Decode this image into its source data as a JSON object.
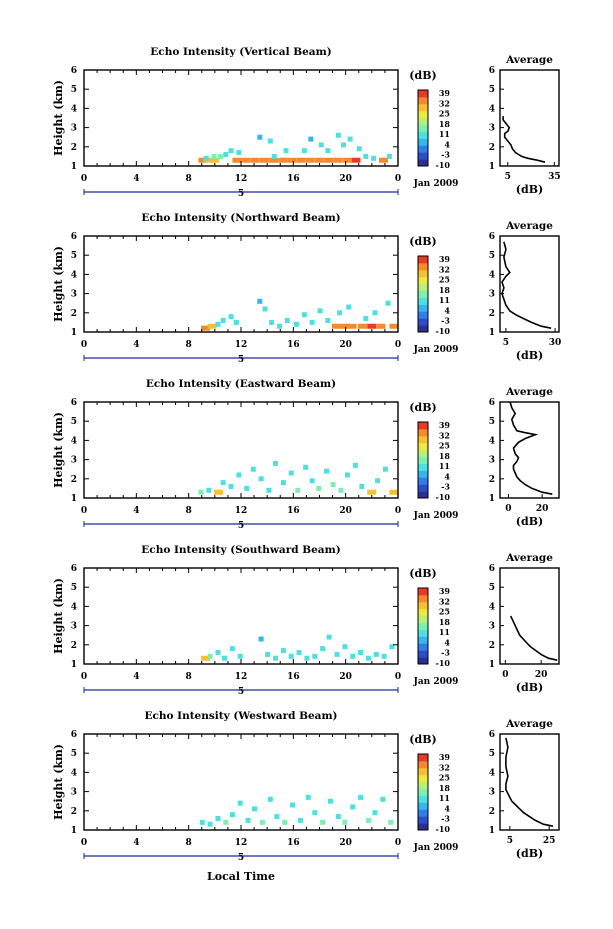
{
  "figure": {
    "xlabel": "Local Time",
    "date_label": "Jan 2009",
    "day_label": "5",
    "colorbar_unit": "(dB)",
    "colorbar_ticks": [
      "39",
      "32",
      "25",
      "18",
      "11",
      "4",
      "-3",
      "-10"
    ],
    "colorbar_colors": [
      "#2b2f8f",
      "#2c4fc9",
      "#2f7fe6",
      "#36b4ee",
      "#4ee0e0",
      "#7cf0b0",
      "#b6f07a",
      "#eaea40",
      "#f7c030",
      "#f48a2a",
      "#e83a26"
    ]
  },
  "chart_data": [
    {
      "type": "heatmap",
      "title": "Echo Intensity (Vertical Beam)",
      "xlabel": "Local Time",
      "ylabel": "Height (km)",
      "xlim": [
        0,
        24
      ],
      "ylim": [
        1,
        6
      ],
      "xticks": [
        "0",
        "4",
        "8",
        "12",
        "16",
        "20",
        "0"
      ],
      "yticks": [
        "1",
        "2",
        "3",
        "4",
        "5",
        "6"
      ],
      "colorbar": {
        "label": "(dB)",
        "range": [
          -10,
          39
        ]
      },
      "cells": [
        [
          8.9,
          1.3,
          31
        ],
        [
          9.3,
          1.3,
          28
        ],
        [
          9.3,
          1.4,
          12
        ],
        [
          9.8,
          1.3,
          30
        ],
        [
          9.9,
          1.5,
          14
        ],
        [
          10.4,
          1.5,
          13
        ],
        [
          10.8,
          1.6,
          9
        ],
        [
          11.2,
          1.8,
          10
        ],
        [
          11.8,
          1.7,
          8
        ],
        [
          11.5,
          1.3,
          32
        ],
        [
          12.2,
          1.3,
          33
        ],
        [
          12.9,
          1.3,
          34
        ],
        [
          13.6,
          1.3,
          34
        ],
        [
          14.3,
          1.3,
          33
        ],
        [
          13.4,
          2.5,
          7
        ],
        [
          14.2,
          2.3,
          10
        ],
        [
          14.5,
          1.5,
          9
        ],
        [
          15.0,
          1.3,
          33
        ],
        [
          15.7,
          1.3,
          32
        ],
        [
          15.4,
          1.8,
          8
        ],
        [
          16.4,
          1.3,
          33
        ],
        [
          17.1,
          1.3,
          34
        ],
        [
          17.8,
          1.3,
          34
        ],
        [
          18.5,
          1.3,
          31
        ],
        [
          16.8,
          1.8,
          11
        ],
        [
          17.3,
          2.4,
          7
        ],
        [
          18.1,
          2.1,
          9
        ],
        [
          18.6,
          1.8,
          10
        ],
        [
          19.2,
          1.3,
          33
        ],
        [
          19.9,
          1.3,
          32
        ],
        [
          19.4,
          2.6,
          8
        ],
        [
          19.8,
          2.1,
          12
        ],
        [
          20.3,
          2.4,
          9
        ],
        [
          20.6,
          1.3,
          37
        ],
        [
          21.0,
          1.9,
          8
        ],
        [
          21.5,
          1.5,
          10
        ],
        [
          22.1,
          1.4,
          9
        ],
        [
          22.7,
          1.3,
          33
        ],
        [
          23.3,
          1.5,
          10
        ]
      ],
      "profile": {
        "title": "Average",
        "xlabel": "(dB)",
        "xlim": [
          0,
          38
        ],
        "xticks": [
          "5",
          "35"
        ],
        "xtick_values": [
          5,
          35
        ],
        "ylim": [
          1,
          6
        ],
        "yticks": [
          "1",
          "2",
          "3",
          "4",
          "5",
          "6"
        ],
        "x": [
          29,
          24,
          18,
          14,
          12,
          10,
          8,
          7,
          5,
          3,
          3,
          5,
          6,
          4,
          2,
          2
        ],
        "y": [
          1.2,
          1.3,
          1.4,
          1.5,
          1.6,
          1.7,
          1.9,
          2.1,
          2.3,
          2.5,
          2.7,
          2.8,
          3.0,
          3.2,
          3.4,
          3.6
        ]
      }
    },
    {
      "type": "heatmap",
      "title": "Echo Intensity (Northward Beam)",
      "xlabel": "Local Time",
      "ylabel": "Height (km)",
      "xlim": [
        0,
        24
      ],
      "ylim": [
        1,
        6
      ],
      "xticks": [
        "0",
        "4",
        "8",
        "12",
        "16",
        "20",
        "0"
      ],
      "yticks": [
        "1",
        "2",
        "3",
        "4",
        "5",
        "6"
      ],
      "colorbar": {
        "label": "(dB)",
        "range": [
          -10,
          39
        ]
      },
      "cells": [
        [
          9.1,
          1.2,
          33
        ],
        [
          9.6,
          1.3,
          30
        ],
        [
          10.2,
          1.4,
          12
        ],
        [
          10.6,
          1.6,
          10
        ],
        [
          11.2,
          1.8,
          9
        ],
        [
          11.6,
          1.5,
          12
        ],
        [
          13.4,
          2.6,
          7
        ],
        [
          13.8,
          2.2,
          9
        ],
        [
          14.3,
          1.5,
          10
        ],
        [
          14.9,
          1.3,
          12
        ],
        [
          15.5,
          1.6,
          9
        ],
        [
          16.2,
          1.4,
          10
        ],
        [
          16.8,
          1.9,
          8
        ],
        [
          17.4,
          1.5,
          11
        ],
        [
          18.0,
          2.1,
          9
        ],
        [
          18.6,
          1.6,
          12
        ],
        [
          19.1,
          1.3,
          31
        ],
        [
          19.7,
          1.3,
          33
        ],
        [
          20.3,
          1.3,
          32
        ],
        [
          19.5,
          2.0,
          10
        ],
        [
          20.2,
          2.3,
          8
        ],
        [
          21.1,
          1.3,
          34
        ],
        [
          21.8,
          1.3,
          35
        ],
        [
          22.5,
          1.3,
          33
        ],
        [
          21.5,
          1.7,
          10
        ],
        [
          22.2,
          2.0,
          8
        ],
        [
          23.2,
          2.5,
          9
        ],
        [
          23.5,
          1.3,
          31
        ]
      ],
      "profile": {
        "title": "Average",
        "xlabel": "(dB)",
        "xlim": [
          2,
          32
        ],
        "xticks": [
          "5",
          "30"
        ],
        "xtick_values": [
          5,
          30
        ],
        "ylim": [
          1,
          6
        ],
        "yticks": [
          "1",
          "2",
          "3",
          "4",
          "5",
          "6"
        ],
        "x": [
          28,
          23,
          18,
          14,
          10,
          7,
          5,
          4,
          3,
          4,
          3,
          5,
          7,
          5,
          4,
          5,
          4
        ],
        "y": [
          1.2,
          1.3,
          1.5,
          1.7,
          1.9,
          2.1,
          2.4,
          2.7,
          3.0,
          3.3,
          3.6,
          3.9,
          4.1,
          4.4,
          4.9,
          5.3,
          5.7
        ]
      }
    },
    {
      "type": "heatmap",
      "title": "Echo Intensity (Eastward Beam)",
      "xlabel": "Local Time",
      "ylabel": "Height (km)",
      "xlim": [
        0,
        24
      ],
      "ylim": [
        1,
        6
      ],
      "xticks": [
        "0",
        "4",
        "8",
        "12",
        "16",
        "20",
        "0"
      ],
      "yticks": [
        "1",
        "2",
        "3",
        "4",
        "5",
        "6"
      ],
      "colorbar": {
        "label": "(dB)",
        "range": [
          -10,
          39
        ]
      },
      "cells": [
        [
          8.9,
          1.3,
          13
        ],
        [
          9.5,
          1.4,
          11
        ],
        [
          10.1,
          1.3,
          28
        ],
        [
          10.6,
          1.8,
          10
        ],
        [
          11.2,
          1.6,
          12
        ],
        [
          11.8,
          2.2,
          9
        ],
        [
          12.4,
          1.5,
          11
        ],
        [
          12.9,
          2.5,
          9
        ],
        [
          13.5,
          2.0,
          10
        ],
        [
          14.1,
          1.4,
          12
        ],
        [
          14.6,
          2.8,
          8
        ],
        [
          15.2,
          1.8,
          11
        ],
        [
          15.8,
          2.3,
          9
        ],
        [
          16.3,
          1.4,
          13
        ],
        [
          16.9,
          2.6,
          8
        ],
        [
          17.4,
          1.9,
          12
        ],
        [
          17.9,
          1.5,
          14
        ],
        [
          18.5,
          2.4,
          9
        ],
        [
          19.0,
          1.7,
          13
        ],
        [
          19.6,
          1.4,
          15
        ],
        [
          20.1,
          2.2,
          10
        ],
        [
          20.7,
          2.7,
          8
        ],
        [
          21.2,
          1.6,
          12
        ],
        [
          21.8,
          1.3,
          29
        ],
        [
          22.4,
          1.9,
          10
        ],
        [
          23.0,
          2.5,
          8
        ],
        [
          23.5,
          1.3,
          30
        ]
      ],
      "profile": {
        "title": "Average",
        "xlabel": "(dB)",
        "xlim": [
          -5,
          30
        ],
        "xticks": [
          "0",
          "20"
        ],
        "xtick_values": [
          0,
          20
        ],
        "ylim": [
          1,
          6
        ],
        "yticks": [
          "1",
          "2",
          "3",
          "4",
          "5",
          "6"
        ],
        "x": [
          26,
          20,
          14,
          10,
          7,
          5,
          4,
          3,
          3,
          5,
          6,
          4,
          3,
          6,
          10,
          16,
          10,
          5,
          3,
          2,
          4,
          2,
          1
        ],
        "y": [
          1.2,
          1.3,
          1.5,
          1.7,
          1.9,
          2.1,
          2.3,
          2.5,
          2.7,
          2.9,
          3.1,
          3.3,
          3.6,
          3.9,
          4.1,
          4.3,
          4.4,
          4.5,
          4.8,
          5.1,
          5.4,
          5.7,
          6.0
        ]
      }
    },
    {
      "type": "heatmap",
      "title": "Echo Intensity (Southward Beam)",
      "xlabel": "Local Time",
      "ylabel": "Height (km)",
      "xlim": [
        0,
        24
      ],
      "ylim": [
        1,
        6
      ],
      "xticks": [
        "0",
        "4",
        "8",
        "12",
        "16",
        "20",
        "0"
      ],
      "yticks": [
        "1",
        "2",
        "3",
        "4",
        "5",
        "6"
      ],
      "colorbar": {
        "label": "(dB)",
        "range": [
          -10,
          39
        ]
      },
      "cells": [
        [
          9.1,
          1.3,
          30
        ],
        [
          9.6,
          1.4,
          13
        ],
        [
          10.2,
          1.6,
          10
        ],
        [
          10.7,
          1.3,
          12
        ],
        [
          11.3,
          1.8,
          9
        ],
        [
          11.9,
          1.4,
          11
        ],
        [
          13.5,
          2.3,
          7
        ],
        [
          14.0,
          1.5,
          10
        ],
        [
          14.6,
          1.3,
          11
        ],
        [
          15.2,
          1.7,
          9
        ],
        [
          15.8,
          1.4,
          10
        ],
        [
          16.4,
          1.6,
          9
        ],
        [
          17.0,
          1.3,
          12
        ],
        [
          17.6,
          1.4,
          10
        ],
        [
          18.2,
          1.8,
          9
        ],
        [
          18.7,
          2.4,
          8
        ],
        [
          19.3,
          1.5,
          12
        ],
        [
          19.9,
          1.9,
          9
        ],
        [
          20.5,
          1.4,
          11
        ],
        [
          21.1,
          1.6,
          10
        ],
        [
          21.7,
          1.3,
          12
        ],
        [
          22.3,
          1.5,
          10
        ],
        [
          22.9,
          1.4,
          11
        ],
        [
          23.5,
          1.9,
          9
        ]
      ],
      "profile": {
        "title": "Average",
        "xlabel": "(dB)",
        "xlim": [
          -3,
          30
        ],
        "xticks": [
          "0",
          "20"
        ],
        "xtick_values": [
          0,
          20
        ],
        "ylim": [
          1,
          6
        ],
        "yticks": [
          "1",
          "2",
          "3",
          "4",
          "5",
          "6"
        ],
        "x": [
          29,
          24,
          20,
          17,
          14,
          12,
          10,
          8,
          7,
          6,
          5,
          4,
          3
        ],
        "y": [
          1.2,
          1.3,
          1.5,
          1.7,
          1.9,
          2.1,
          2.3,
          2.5,
          2.7,
          2.9,
          3.1,
          3.3,
          3.5
        ]
      }
    },
    {
      "type": "heatmap",
      "title": "Echo Intensity (Westward Beam)",
      "xlabel": "Local Time",
      "ylabel": "Height (km)",
      "xlim": [
        0,
        24
      ],
      "ylim": [
        1,
        6
      ],
      "xticks": [
        "0",
        "4",
        "8",
        "12",
        "16",
        "20",
        "0"
      ],
      "yticks": [
        "1",
        "2",
        "3",
        "4",
        "5",
        "6"
      ],
      "colorbar": {
        "label": "(dB)",
        "range": [
          -10,
          39
        ]
      },
      "cells": [
        [
          9.0,
          1.4,
          11
        ],
        [
          9.6,
          1.3,
          12
        ],
        [
          10.2,
          1.6,
          10
        ],
        [
          10.8,
          1.4,
          13
        ],
        [
          11.3,
          1.8,
          9
        ],
        [
          11.9,
          2.4,
          8
        ],
        [
          12.5,
          1.5,
          12
        ],
        [
          13.0,
          2.1,
          9
        ],
        [
          13.6,
          1.4,
          14
        ],
        [
          14.2,
          2.6,
          8
        ],
        [
          14.7,
          1.7,
          11
        ],
        [
          15.3,
          1.4,
          13
        ],
        [
          15.9,
          2.3,
          9
        ],
        [
          16.5,
          1.5,
          12
        ],
        [
          17.1,
          2.7,
          8
        ],
        [
          17.6,
          1.9,
          11
        ],
        [
          18.2,
          1.4,
          14
        ],
        [
          18.8,
          2.5,
          9
        ],
        [
          19.4,
          1.7,
          12
        ],
        [
          19.9,
          1.4,
          15
        ],
        [
          20.5,
          2.2,
          10
        ],
        [
          21.1,
          2.7,
          8
        ],
        [
          21.7,
          1.5,
          13
        ],
        [
          22.2,
          1.9,
          10
        ],
        [
          22.8,
          2.6,
          8
        ],
        [
          23.4,
          1.4,
          14
        ]
      ],
      "profile": {
        "title": "Average",
        "xlabel": "(dB)",
        "xlim": [
          0,
          30
        ],
        "xticks": [
          "5",
          "25"
        ],
        "xtick_values": [
          5,
          25
        ],
        "ylim": [
          1,
          6
        ],
        "yticks": [
          "1",
          "2",
          "3",
          "4",
          "5",
          "6"
        ],
        "x": [
          27,
          22,
          18,
          15,
          12,
          10,
          8,
          6,
          5,
          4,
          3,
          3,
          4,
          3,
          3,
          4,
          3
        ],
        "y": [
          1.2,
          1.3,
          1.5,
          1.7,
          1.9,
          2.1,
          2.3,
          2.5,
          2.7,
          2.9,
          3.1,
          3.4,
          3.8,
          4.3,
          4.8,
          5.3,
          5.8
        ]
      }
    }
  ]
}
